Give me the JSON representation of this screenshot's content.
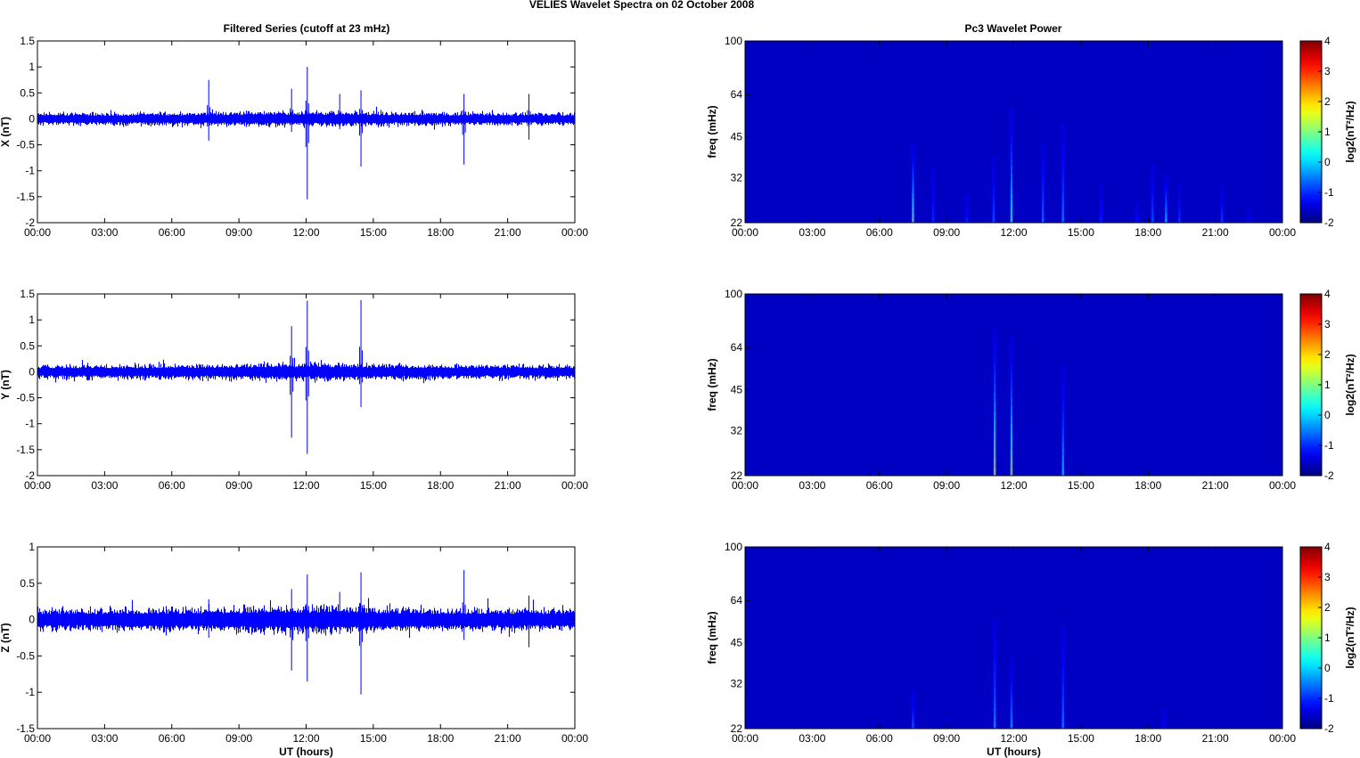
{
  "figure": {
    "title": "VELIES Wavelet Spectra on 02 October   2008",
    "left_column_title": "Filtered Series (cutoff at 23 mHz)",
    "right_column_title": "Pc3 Wavelet Power",
    "time_tick_labels": [
      "00:00",
      "03:00",
      "06:00",
      "09:00",
      "12:00",
      "15:00",
      "18:00",
      "21:00",
      "00:00"
    ],
    "x_axis_label": "UT (hours)"
  },
  "colors": {
    "series_line": "#0000ff",
    "spectrum_background": "#00008f",
    "colormap": "jet"
  },
  "chart_data": [
    {
      "type": "line",
      "panel": "X",
      "title": "Filtered Series (cutoff at 23 mHz)",
      "xlabel": "",
      "ylabel": "X (nT)",
      "xlim": [
        0,
        24
      ],
      "ylim": [
        -2,
        1.5
      ],
      "yticks": [
        1.5,
        1,
        0.5,
        0,
        -0.5,
        -1,
        -1.5,
        -2
      ],
      "ytick_labels": [
        "1.5",
        "1",
        "0.5",
        "0",
        "-0.5",
        "-1",
        "-1.5",
        "-2"
      ],
      "noise_amplitude_nT": 0.08,
      "spikes": [
        {
          "t": 7.65,
          "max": 0.75,
          "min": -0.42
        },
        {
          "t": 11.35,
          "max": 0.58,
          "min": -0.25
        },
        {
          "t": 12.05,
          "max": 1.0,
          "min": -1.55
        },
        {
          "t": 13.5,
          "max": 0.48,
          "min": -0.2
        },
        {
          "t": 14.45,
          "max": 0.55,
          "min": -0.92
        },
        {
          "t": 19.05,
          "max": 0.48,
          "min": -0.88
        },
        {
          "t": 21.95,
          "max": 0.48,
          "min": -0.4
        }
      ]
    },
    {
      "type": "line",
      "panel": "Y",
      "xlabel": "",
      "ylabel": "Y (nT)",
      "xlim": [
        0,
        24
      ],
      "ylim": [
        -2,
        1.5
      ],
      "yticks": [
        1.5,
        1,
        0.5,
        0,
        -0.5,
        -1,
        -1.5,
        -2
      ],
      "ytick_labels": [
        "1.5",
        "1",
        "0.5",
        "0",
        "-0.5",
        "-1",
        "-1.5",
        "-2"
      ],
      "noise_amplitude_nT": 0.09,
      "spikes": [
        {
          "t": 11.35,
          "max": 0.88,
          "min": -1.27
        },
        {
          "t": 12.05,
          "max": 1.37,
          "min": -1.58
        },
        {
          "t": 14.45,
          "max": 1.38,
          "min": -0.68
        }
      ]
    },
    {
      "type": "line",
      "panel": "Z",
      "xlabel": "UT (hours)",
      "ylabel": "Z (nT)",
      "xlim": [
        0,
        24
      ],
      "ylim": [
        -1.5,
        1
      ],
      "yticks": [
        1,
        0.5,
        0,
        -0.5,
        -1,
        -1.5
      ],
      "ytick_labels": [
        "1",
        "0.5",
        "0",
        "-0.5",
        "-1",
        "-1.5"
      ],
      "noise_amplitude_nT": 0.1,
      "spikes": [
        {
          "t": 7.65,
          "max": 0.28,
          "min": -0.25
        },
        {
          "t": 11.35,
          "max": 0.42,
          "min": -0.7
        },
        {
          "t": 12.05,
          "max": 0.62,
          "min": -0.85
        },
        {
          "t": 13.5,
          "max": 0.38,
          "min": -0.2
        },
        {
          "t": 14.45,
          "max": 0.65,
          "min": -1.03
        },
        {
          "t": 19.05,
          "max": 0.68,
          "min": -0.28
        },
        {
          "t": 21.95,
          "max": 0.33,
          "min": -0.38
        }
      ]
    },
    {
      "type": "heatmap",
      "panel": "X",
      "title": "Pc3 Wavelet Power",
      "xlabel": "",
      "ylabel": "freq (mHz)",
      "xlim": [
        0,
        24
      ],
      "ylim": [
        22,
        100
      ],
      "yscale": "log",
      "yticks": [
        100,
        64,
        45,
        32,
        22
      ],
      "ytick_labels": [
        "100",
        "64",
        "45",
        "32",
        "22"
      ],
      "colorbar": {
        "label": "log2(nT²/Hz)",
        "range": [
          -2,
          4
        ],
        "ticks": [
          "4",
          "3",
          "2",
          "1",
          "0",
          "-1",
          "-2"
        ]
      },
      "background_level": -1.6,
      "bursts": [
        {
          "t": 7.5,
          "fmax": 43,
          "peak": 1.0
        },
        {
          "t": 8.4,
          "fmax": 35,
          "peak": -0.9
        },
        {
          "t": 9.9,
          "fmax": 28,
          "peak": -1.0
        },
        {
          "t": 11.1,
          "fmax": 38,
          "peak": -0.6
        },
        {
          "t": 11.9,
          "fmax": 57,
          "peak": 0.7
        },
        {
          "t": 13.3,
          "fmax": 43,
          "peak": -0.4
        },
        {
          "t": 14.2,
          "fmax": 50,
          "peak": -0.3
        },
        {
          "t": 15.9,
          "fmax": 30,
          "peak": -1.0
        },
        {
          "t": 17.5,
          "fmax": 26,
          "peak": -1.1
        },
        {
          "t": 18.2,
          "fmax": 36,
          "peak": -0.6
        },
        {
          "t": 18.8,
          "fmax": 33,
          "peak": 0.2
        },
        {
          "t": 19.4,
          "fmax": 30,
          "peak": -0.8
        },
        {
          "t": 21.3,
          "fmax": 30,
          "peak": -0.7
        },
        {
          "t": 22.5,
          "fmax": 25,
          "peak": -1.2
        }
      ]
    },
    {
      "type": "heatmap",
      "panel": "Y",
      "xlabel": "",
      "ylabel": "freq (mHz)",
      "xlim": [
        0,
        24
      ],
      "ylim": [
        22,
        100
      ],
      "yscale": "log",
      "yticks": [
        100,
        64,
        45,
        32,
        22
      ],
      "ytick_labels": [
        "100",
        "64",
        "45",
        "32",
        "22"
      ],
      "colorbar": {
        "label": "log2(nT²/Hz)",
        "range": [
          -2,
          4
        ],
        "ticks": [
          "4",
          "3",
          "2",
          "1",
          "0",
          "-1",
          "-2"
        ]
      },
      "background_level": -1.6,
      "bursts": [
        {
          "t": 11.15,
          "fmax": 75,
          "peak": 1.5
        },
        {
          "t": 11.9,
          "fmax": 70,
          "peak": 1.3
        },
        {
          "t": 14.2,
          "fmax": 55,
          "peak": 0.1
        }
      ]
    },
    {
      "type": "heatmap",
      "panel": "Z",
      "xlabel": "UT (hours)",
      "ylabel": "freq (mHz)",
      "xlim": [
        0,
        24
      ],
      "ylim": [
        22,
        100
      ],
      "yscale": "log",
      "yticks": [
        100,
        64,
        45,
        32,
        22
      ],
      "ytick_labels": [
        "100",
        "64",
        "45",
        "32",
        "22"
      ],
      "colorbar": {
        "label": "log2(nT²/Hz)",
        "range": [
          -2,
          4
        ],
        "ticks": [
          "4",
          "3",
          "2",
          "1",
          "0",
          "-1",
          "-2"
        ]
      },
      "background_level": -1.6,
      "bursts": [
        {
          "t": 7.5,
          "fmax": 30,
          "peak": -0.5
        },
        {
          "t": 11.15,
          "fmax": 55,
          "peak": -0.2
        },
        {
          "t": 11.9,
          "fmax": 40,
          "peak": -0.1
        },
        {
          "t": 14.2,
          "fmax": 52,
          "peak": -0.3
        },
        {
          "t": 18.7,
          "fmax": 26,
          "peak": -1.2
        }
      ]
    }
  ]
}
